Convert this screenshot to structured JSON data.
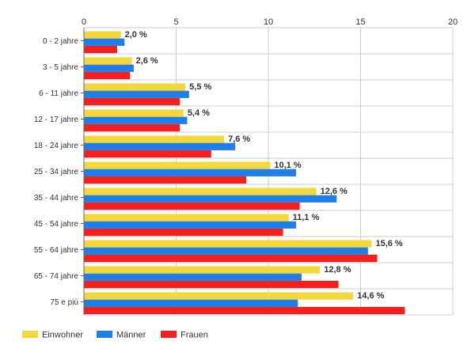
{
  "chart_data": {
    "type": "bar",
    "orientation": "horizontal",
    "categories": [
      "0 - 2 jahre",
      "3 - 5 jahre",
      "6 - 11 jahre",
      "12 - 17 jahre",
      "18 - 24 jahre",
      "25 - 34 jahre",
      "35 - 44 jahre",
      "45 - 54 jahre",
      "55 - 64 jahre",
      "65 - 74 jahre",
      "75 e più"
    ],
    "series": [
      {
        "name": "Einwohner",
        "color": "#f4d73b",
        "values": [
          2.0,
          2.6,
          5.5,
          5.4,
          7.6,
          10.1,
          12.6,
          11.1,
          15.6,
          12.8,
          14.6
        ]
      },
      {
        "name": "Männer",
        "color": "#1e7fe8",
        "values": [
          2.2,
          2.7,
          5.7,
          5.6,
          8.2,
          11.5,
          13.7,
          11.5,
          15.4,
          11.8,
          11.6
        ]
      },
      {
        "name": "Frauen",
        "color": "#f42020",
        "values": [
          1.8,
          2.5,
          5.2,
          5.2,
          6.9,
          8.8,
          11.7,
          10.8,
          15.9,
          13.8,
          17.4
        ]
      }
    ],
    "data_labels": [
      "2,0 %",
      "2,6 %",
      "5,5 %",
      "5,4 %",
      "7,6 %",
      "10,1 %",
      "12,6 %",
      "11,1 %",
      "15,6 %",
      "12,8 %",
      "14,6 %"
    ],
    "xlim": [
      0,
      20
    ],
    "x_ticks": [
      "0",
      "5",
      "10",
      "15",
      "20"
    ],
    "x_tick_values": [
      0,
      5,
      10,
      15,
      20
    ],
    "grid": true,
    "legend_position": "bottom-left"
  }
}
